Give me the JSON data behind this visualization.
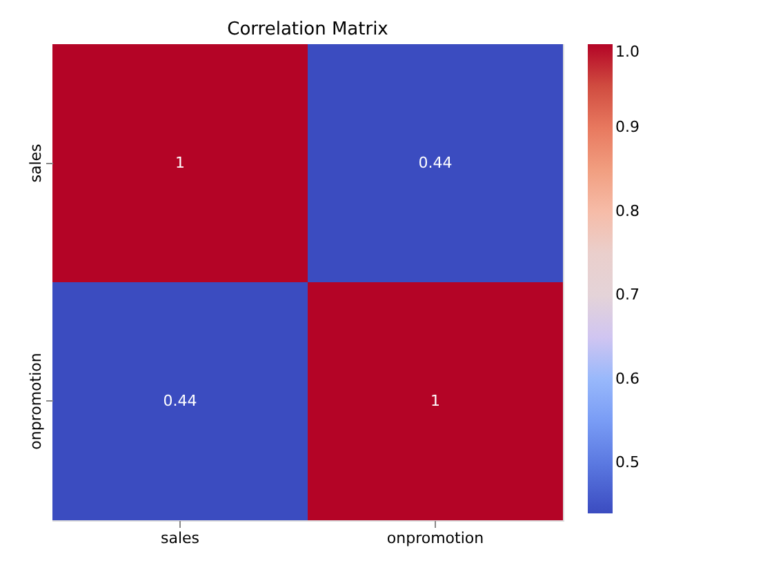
{
  "chart_data": {
    "type": "heatmap",
    "title": "Correlation Matrix",
    "categories": [
      "sales",
      "onpromotion"
    ],
    "y_categories": [
      "sales",
      "onpromotion"
    ],
    "cells": [
      [
        1,
        0.44
      ],
      [
        0.44,
        1
      ]
    ],
    "clim": [
      0.44,
      1.0
    ],
    "cticks": [
      {
        "value": 0.5,
        "label": "0.5"
      },
      {
        "value": 0.6,
        "label": "0.6"
      },
      {
        "value": 0.7,
        "label": "0.7"
      },
      {
        "value": 0.8,
        "label": "0.8"
      },
      {
        "value": 0.9,
        "label": "0.9"
      },
      {
        "value": 1.0,
        "label": "1.0"
      }
    ],
    "data_labels": true
  }
}
